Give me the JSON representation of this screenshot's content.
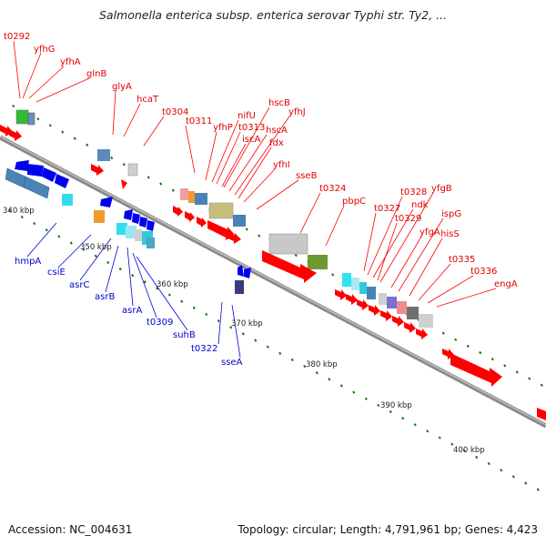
{
  "title": "Salmonella enterica subsp. enterica serovar Typhi str. Ty2, ...",
  "footer": {
    "accession": "Accession: NC_004631",
    "summary": "Topology: circular; Length: 4,791,961 bp; Genes: 4,423"
  },
  "kbp_labels": [
    "340 kbp",
    "350 kbp",
    "360 kbp",
    "370 kbp",
    "380 kbp",
    "390 kbp",
    "400 kbp"
  ],
  "top_genes": [
    "t0292",
    "yfhG",
    "yfhA",
    "glnB",
    "glyA",
    "hcaT",
    "t0304",
    "t0311",
    "yfhP",
    "nifU",
    "t0313",
    "iscA",
    "hscB",
    "hscA",
    "yfhJ",
    "fdx",
    "yfhI",
    "sseB",
    "t0324",
    "pbpC",
    "t0327",
    "t0328",
    "ndk",
    "t0329",
    "yfgB",
    "yfgA",
    "ispG",
    "hisS",
    "t0335",
    "t0336",
    "engA"
  ],
  "bottom_genes": [
    "hmpA",
    "csiE",
    "asrC",
    "asrB",
    "asrA",
    "t0309",
    "suhB",
    "t0322",
    "sseA"
  ],
  "colors": {
    "forward_gene": "#ff0000",
    "reverse_gene": "#0000ee",
    "backbone": "#777777",
    "tick": "#0a7a0a"
  }
}
